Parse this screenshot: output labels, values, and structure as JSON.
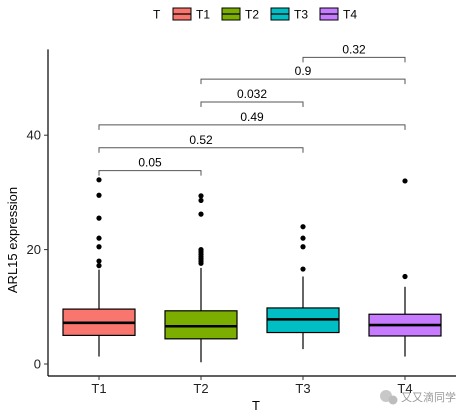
{
  "chart_data": {
    "type": "box",
    "title": "",
    "xlabel": "T",
    "ylabel": "ARL15 expression",
    "ylim": [
      -1,
      55
    ],
    "yticks": [
      0,
      20,
      40
    ],
    "categories": [
      "T1",
      "T2",
      "T3",
      "T4"
    ],
    "legend": {
      "title": "T",
      "position": "top"
    },
    "series": [
      {
        "name": "T1",
        "color": "#F8766D",
        "whisker_low": 1.3,
        "q1": 5.0,
        "median": 7.2,
        "q3": 9.6,
        "whisker_high": 16.5,
        "outliers": [
          32.2,
          29.5,
          25.5,
          22.0,
          20.5,
          18.0,
          17.2
        ]
      },
      {
        "name": "T2",
        "color": "#7CAE00",
        "whisker_low": 0.3,
        "q1": 4.4,
        "median": 6.6,
        "q3": 9.3,
        "whisker_high": 16.8,
        "outliers": [
          29.4,
          28.6,
          26.2,
          20.0,
          19.6,
          19.2,
          18.8,
          18.4,
          18.0,
          17.6
        ]
      },
      {
        "name": "T3",
        "color": "#00BFC4",
        "whisker_low": 2.6,
        "q1": 5.5,
        "median": 7.8,
        "q3": 9.8,
        "whisker_high": 15.3,
        "outliers": [
          24.0,
          22.0,
          20.5,
          16.6
        ]
      },
      {
        "name": "T4",
        "color": "#C77CFF",
        "whisker_low": 1.3,
        "q1": 4.9,
        "median": 6.8,
        "q3": 8.7,
        "whisker_high": 13.5,
        "outliers": [
          32.0,
          15.3
        ]
      }
    ],
    "comparisons": [
      {
        "from": "T1",
        "to": "T2",
        "y": 33.8,
        "label": "0.05"
      },
      {
        "from": "T1",
        "to": "T3",
        "y": 37.8,
        "label": "0.52"
      },
      {
        "from": "T1",
        "to": "T4",
        "y": 41.8,
        "label": "0.49"
      },
      {
        "from": "T2",
        "to": "T3",
        "y": 45.8,
        "label": "0.032"
      },
      {
        "from": "T2",
        "to": "T4",
        "y": 49.8,
        "label": "0.9"
      },
      {
        "from": "T3",
        "to": "T4",
        "y": 53.6,
        "label": "0.32"
      }
    ]
  },
  "watermark": "又又滴同学"
}
